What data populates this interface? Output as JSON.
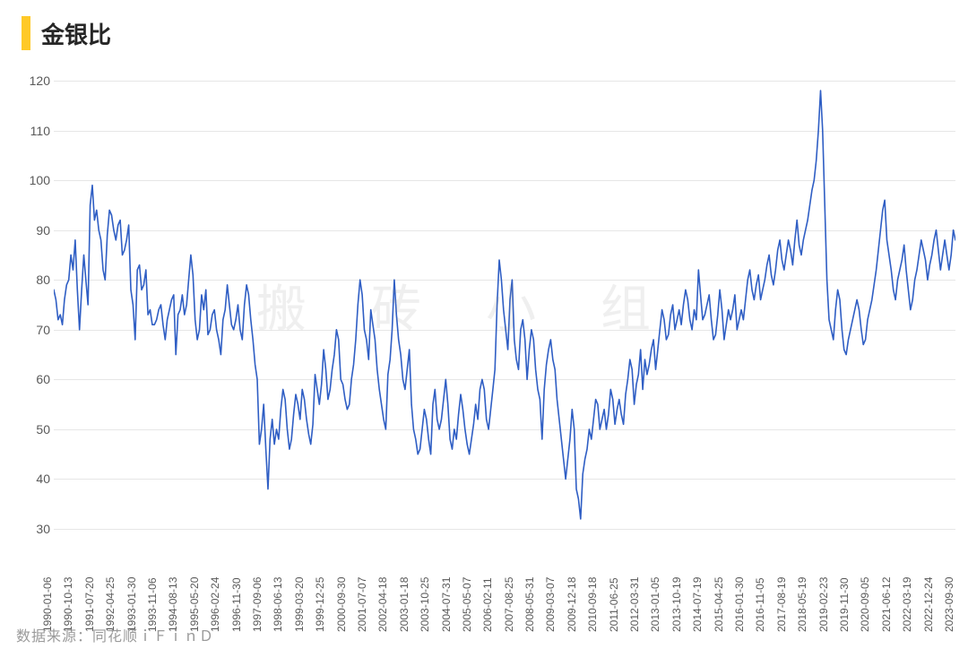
{
  "title": "金银比",
  "source_label": "数据来源：同花顺ｉＦｉｎＤ",
  "watermark": "搬砖小组",
  "chart": {
    "type": "line",
    "line_color": "#2f5ec4",
    "line_width": 1.6,
    "title_bar_color": "#ffc928",
    "background_color": "#ffffff",
    "grid_color": "#e6e6e6",
    "axis_text_color": "#595959",
    "ylim": [
      30,
      120
    ],
    "ytick_step": 10,
    "yticks": [
      30,
      40,
      50,
      60,
      70,
      80,
      90,
      100,
      110,
      120
    ],
    "x_labels": [
      "1990-01-06",
      "1990-10-13",
      "1991-07-20",
      "1992-04-25",
      "1993-01-30",
      "1993-11-06",
      "1994-08-13",
      "1995-05-20",
      "1996-02-24",
      "1996-11-30",
      "1997-09-06",
      "1998-06-13",
      "1999-03-20",
      "1999-12-25",
      "2000-09-30",
      "2001-07-07",
      "2002-04-18",
      "2003-01-18",
      "2003-10-25",
      "2004-07-31",
      "2005-05-07",
      "2006-02-11",
      "2007-08-25",
      "2008-05-31",
      "2009-03-07",
      "2009-12-18",
      "2010-09-18",
      "2011-06-25",
      "2012-03-31",
      "2013-01-05",
      "2013-10-19",
      "2014-07-19",
      "2015-04-25",
      "2016-01-30",
      "2016-11-05",
      "2017-08-19",
      "2018-05-19",
      "2019-02-23",
      "2019-11-30",
      "2020-09-05",
      "2021-06-12",
      "2022-03-19",
      "2022-12-24",
      "2023-09-30"
    ],
    "series": [
      78,
      76,
      72,
      73,
      71,
      76,
      79,
      80,
      85,
      82,
      88,
      78,
      70,
      78,
      85,
      80,
      75,
      95,
      99,
      92,
      94,
      90,
      88,
      82,
      80,
      89,
      94,
      93,
      90,
      88,
      91,
      92,
      85,
      86,
      88,
      91,
      78,
      75,
      68,
      82,
      83,
      78,
      79,
      82,
      73,
      74,
      71,
      71,
      72,
      74,
      75,
      71,
      68,
      72,
      74,
      76,
      77,
      65,
      73,
      74,
      77,
      73,
      75,
      80,
      85,
      81,
      72,
      68,
      70,
      77,
      74,
      78,
      69,
      70,
      73,
      74,
      70,
      68,
      65,
      72,
      74,
      79,
      75,
      71,
      70,
      72,
      75,
      70,
      68,
      75,
      79,
      77,
      72,
      68,
      63,
      60,
      47,
      50,
      55,
      46,
      38,
      48,
      52,
      47,
      50,
      48,
      54,
      58,
      56,
      50,
      46,
      48,
      53,
      57,
      55,
      52,
      58,
      56,
      52,
      49,
      47,
      51,
      61,
      58,
      55,
      59,
      66,
      62,
      56,
      58,
      62,
      65,
      70,
      68,
      60,
      59,
      56,
      54,
      55,
      60,
      63,
      68,
      75,
      80,
      77,
      70,
      68,
      64,
      74,
      71,
      68,
      62,
      58,
      55,
      52,
      50,
      61,
      64,
      70,
      80,
      73,
      68,
      65,
      60,
      58,
      62,
      66,
      55,
      50,
      48,
      45,
      46,
      50,
      54,
      52,
      48,
      45,
      55,
      58,
      52,
      50,
      52,
      56,
      60,
      55,
      48,
      46,
      50,
      48,
      53,
      57,
      54,
      50,
      47,
      45,
      48,
      51,
      55,
      52,
      58,
      60,
      58,
      52,
      50,
      54,
      58,
      62,
      75,
      84,
      80,
      74,
      70,
      66,
      76,
      80,
      68,
      64,
      62,
      70,
      72,
      68,
      60,
      66,
      70,
      68,
      62,
      58,
      56,
      48,
      58,
      63,
      66,
      68,
      64,
      62,
      56,
      52,
      48,
      44,
      40,
      44,
      48,
      54,
      50,
      38,
      36,
      32,
      41,
      44,
      46,
      50,
      48,
      52,
      56,
      55,
      50,
      52,
      54,
      50,
      53,
      58,
      56,
      51,
      54,
      56,
      53,
      51,
      57,
      60,
      64,
      62,
      55,
      59,
      61,
      66,
      58,
      64,
      61,
      63,
      66,
      68,
      62,
      66,
      70,
      74,
      72,
      68,
      69,
      73,
      75,
      70,
      72,
      74,
      71,
      75,
      78,
      76,
      72,
      70,
      74,
      72,
      82,
      77,
      72,
      73,
      75,
      77,
      72,
      68,
      69,
      73,
      78,
      74,
      68,
      71,
      74,
      72,
      74,
      77,
      70,
      72,
      74,
      72,
      76,
      80,
      82,
      78,
      76,
      79,
      81,
      76,
      78,
      80,
      83,
      85,
      81,
      79,
      82,
      86,
      88,
      84,
      82,
      85,
      88,
      86,
      83,
      88,
      92,
      87,
      85,
      88,
      90,
      92,
      95,
      98,
      100,
      104,
      110,
      118,
      110,
      95,
      80,
      72,
      70,
      68,
      74,
      78,
      76,
      70,
      66,
      65,
      68,
      70,
      72,
      74,
      76,
      74,
      70,
      67,
      68,
      72,
      74,
      76,
      79,
      82,
      86,
      90,
      94,
      96,
      88,
      85,
      82,
      78,
      76,
      80,
      82,
      84,
      87,
      82,
      78,
      74,
      76,
      80,
      82,
      85,
      88,
      86,
      84,
      80,
      83,
      85,
      88,
      90,
      86,
      82,
      85,
      88,
      85,
      82,
      85,
      90,
      88
    ]
  }
}
